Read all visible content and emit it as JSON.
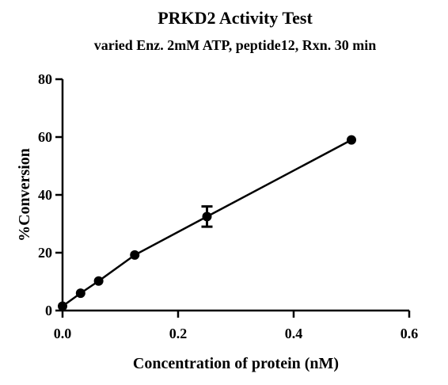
{
  "chart_data": {
    "type": "scatter",
    "title": "PRKD2 Activity Test",
    "subtitle": "varied Enz. 2mM ATP, peptide12, Rxn. 30 min",
    "xlabel": "Concentration of protein (nM)",
    "ylabel": "%Conversion",
    "xlim": [
      0,
      0.6
    ],
    "ylim": [
      0,
      80
    ],
    "xticks": [
      0,
      0.2,
      0.4,
      0.6
    ],
    "xtick_labels": [
      "0.0",
      "0.2",
      "0.4",
      "0.6"
    ],
    "yticks": [
      0,
      20,
      40,
      60,
      80
    ],
    "ytick_labels": [
      "0",
      "20",
      "40",
      "60",
      "80"
    ],
    "grid": false,
    "legend": "none",
    "connected": true,
    "series": [
      {
        "x": [
          0.0,
          0.03125,
          0.0625,
          0.125,
          0.25,
          0.5
        ],
        "y": [
          1.5,
          6.0,
          10.2,
          19.2,
          32.5,
          59.0
        ],
        "error": [
          0,
          0,
          0,
          0,
          3.5,
          0
        ]
      }
    ]
  }
}
